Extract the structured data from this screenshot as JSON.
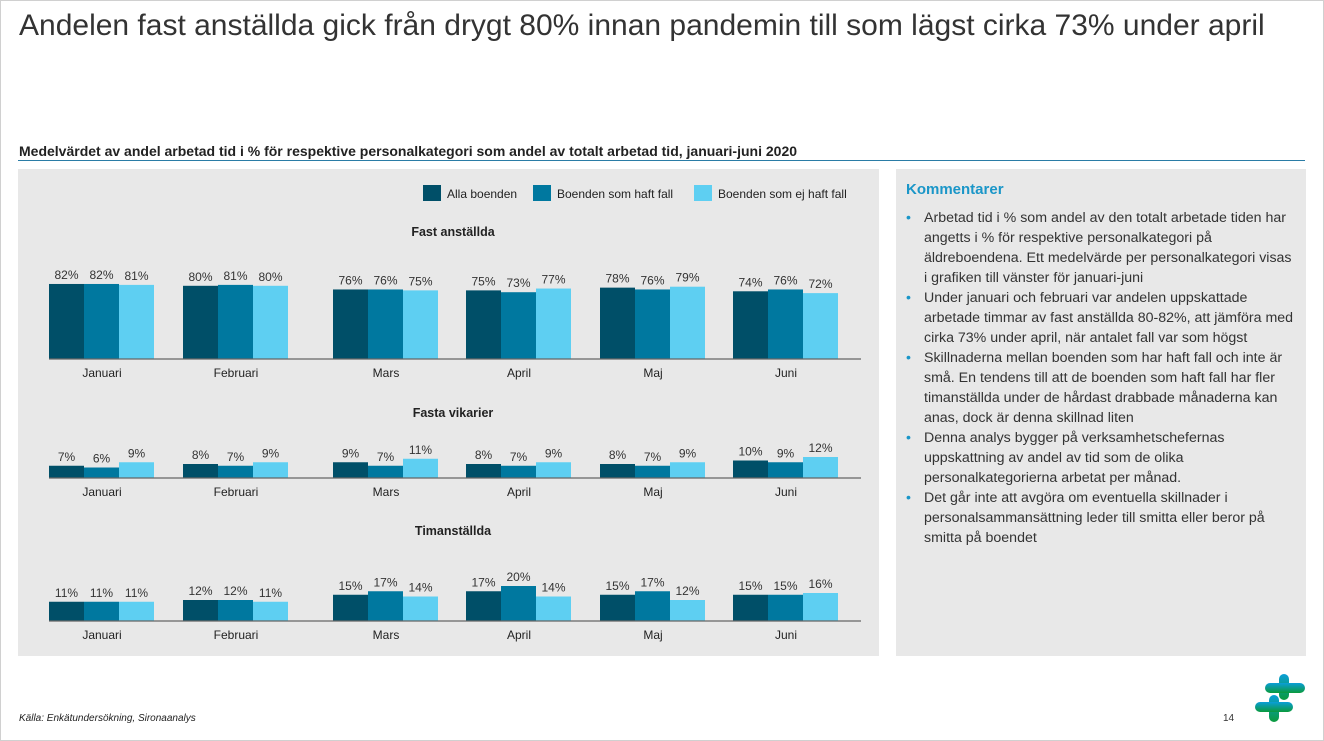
{
  "title": "Andelen fast anställda gick från drygt 80% innan pandemin till som lägst cirka 73% under april",
  "subtitle": "Medelvärdet av andel arbetad tid i % för respektive personalkategori som andel av totalt arbetad tid, januari-juni 2020",
  "colors": {
    "alla": "#004f68",
    "haft": "#00789f",
    "ej": "#5ecff2",
    "accent": "#1a96c8"
  },
  "chart_data": [
    {
      "type": "bar",
      "title": "Fast anställda",
      "categories": [
        "Januari",
        "Februari",
        "Mars",
        "April",
        "Maj",
        "Juni"
      ],
      "ylim": [
        0,
        100
      ],
      "series": [
        {
          "name": "Alla boenden",
          "values": [
            82,
            80,
            76,
            75,
            78,
            74
          ]
        },
        {
          "name": "Boenden som haft fall",
          "values": [
            82,
            81,
            76,
            73,
            76,
            76
          ]
        },
        {
          "name": "Boenden som ej haft fall",
          "values": [
            81,
            80,
            75,
            77,
            79,
            72
          ]
        }
      ]
    },
    {
      "type": "bar",
      "title": "Fasta vikarier",
      "categories": [
        "Januari",
        "Februari",
        "Mars",
        "April",
        "Maj",
        "Juni"
      ],
      "ylim": [
        0,
        20
      ],
      "series": [
        {
          "name": "Alla boenden",
          "values": [
            7,
            8,
            9,
            8,
            8,
            10
          ]
        },
        {
          "name": "Boenden som haft fall",
          "values": [
            6,
            7,
            7,
            7,
            7,
            9
          ]
        },
        {
          "name": "Boenden som ej haft fall",
          "values": [
            9,
            9,
            11,
            9,
            9,
            12
          ]
        }
      ]
    },
    {
      "type": "bar",
      "title": "Timanställda",
      "categories": [
        "Januari",
        "Februari",
        "Mars",
        "April",
        "Maj",
        "Juni"
      ],
      "ylim": [
        0,
        20
      ],
      "series": [
        {
          "name": "Alla boenden",
          "values": [
            11,
            12,
            15,
            17,
            15,
            15
          ]
        },
        {
          "name": "Boenden som haft fall",
          "values": [
            11,
            12,
            17,
            20,
            17,
            15
          ]
        },
        {
          "name": "Boenden som ej haft fall",
          "values": [
            11,
            11,
            14,
            14,
            12,
            16
          ]
        }
      ]
    }
  ],
  "legend": [
    "Alla boenden",
    "Boenden som haft fall",
    "Boenden som ej haft fall"
  ],
  "comments": {
    "heading": "Kommentarer",
    "items": [
      "Arbetad tid i % som andel av den totalt arbetade tiden har angetts i % för respektive personalkategori på äldreboendena. Ett medelvärde per personalkategori visas i grafiken till vänster för januari-juni",
      "Under januari och februari var andelen uppskattade arbetade timmar av fast anställda 80-82%, att jämföra med cirka 73% under april, när antalet fall var som högst",
      "Skillnaderna mellan boenden som har haft fall och inte är små. En tendens till att de boenden som haft fall har fler timanställda under de hårdast drabbade månaderna kan anas, dock är denna skillnad liten",
      "Denna analys bygger på verksamhetschefernas uppskattning av andel av tid som de olika personalkategorierna arbetat per månad.",
      "Det går inte att avgöra om eventuella skillnader i personalsammansättning leder till smitta eller beror på smitta på boendet"
    ]
  },
  "footer": {
    "source": "Källa: Enkätundersökning, Sironaanalys",
    "page": "14"
  }
}
